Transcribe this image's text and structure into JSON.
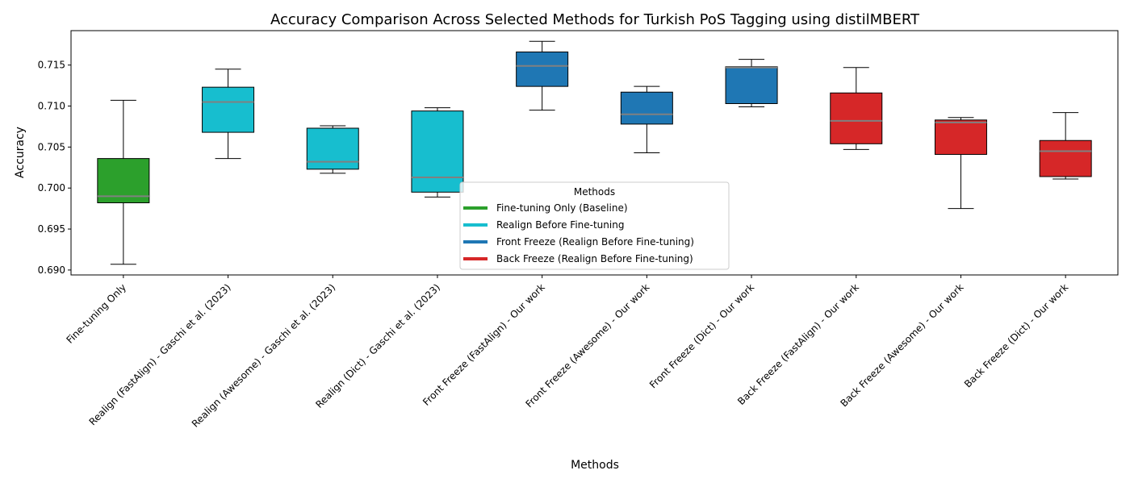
{
  "chart_data": {
    "type": "box",
    "title": "Accuracy Comparison Across Selected Methods for Turkish PoS Tagging using distilMBERT",
    "xlabel": "Methods",
    "ylabel": "Accuracy",
    "ylim": [
      0.6894,
      0.7192
    ],
    "yticks": [
      0.69,
      0.695,
      0.7,
      0.705,
      0.71,
      0.715
    ],
    "ytick_labels": [
      "0.690",
      "0.695",
      "0.700",
      "0.705",
      "0.710",
      "0.715"
    ],
    "grid": false,
    "median_color": "#808080",
    "categories": [
      "Fine-tuning Only",
      "Realign (FastAlign) - Gaschi et al. (2023)",
      "Realign (Awesome) - Gaschi et al. (2023)",
      "Realign (Dict) - Gaschi et al. (2023)",
      "Front Freeze (FastAlign) - Our work",
      "Front Freeze (Awesome) - Our work",
      "Front Freeze (Dict) - Our work",
      "Back Freeze (FastAlign) - Our work",
      "Back Freeze (Awesome) - Our work",
      "Back Freeze (Dict) - Our work"
    ],
    "boxes": [
      {
        "group": 0,
        "min": 0.6907,
        "q1": 0.6982,
        "median": 0.699,
        "q3": 0.7036,
        "max": 0.7107
      },
      {
        "group": 1,
        "min": 0.7036,
        "q1": 0.7068,
        "median": 0.7105,
        "q3": 0.7123,
        "max": 0.7145
      },
      {
        "group": 1,
        "min": 0.7018,
        "q1": 0.7023,
        "median": 0.7032,
        "q3": 0.7073,
        "max": 0.7076
      },
      {
        "group": 1,
        "min": 0.6989,
        "q1": 0.6995,
        "median": 0.7013,
        "q3": 0.7094,
        "max": 0.7098
      },
      {
        "group": 2,
        "min": 0.7095,
        "q1": 0.7124,
        "median": 0.7149,
        "q3": 0.7166,
        "max": 0.7179
      },
      {
        "group": 2,
        "min": 0.7043,
        "q1": 0.7078,
        "median": 0.709,
        "q3": 0.7117,
        "max": 0.7124
      },
      {
        "group": 2,
        "min": 0.7099,
        "q1": 0.7103,
        "median": 0.7147,
        "q3": 0.7148,
        "max": 0.7157
      },
      {
        "group": 3,
        "min": 0.7047,
        "q1": 0.7054,
        "median": 0.7082,
        "q3": 0.7116,
        "max": 0.7147
      },
      {
        "group": 3,
        "min": 0.6975,
        "q1": 0.7041,
        "median": 0.708,
        "q3": 0.7083,
        "max": 0.7086
      },
      {
        "group": 3,
        "min": 0.7011,
        "q1": 0.7014,
        "median": 0.7045,
        "q3": 0.7058,
        "max": 0.7092
      }
    ],
    "legend": {
      "title": "Methods",
      "placement": "lower-center",
      "entries": [
        {
          "label": "Fine-tuning Only (Baseline)",
          "color": "#2ca02c"
        },
        {
          "label": "Realign Before Fine-tuning",
          "color": "#17becf"
        },
        {
          "label": "Front Freeze (Realign Before Fine-tuning)",
          "color": "#1f77b4"
        },
        {
          "label": "Back Freeze (Realign Before Fine-tuning)",
          "color": "#d62728"
        }
      ]
    }
  }
}
